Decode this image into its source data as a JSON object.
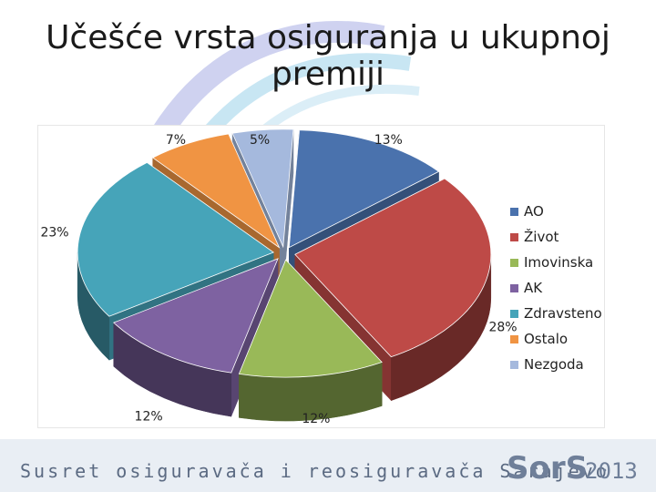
{
  "slide": {
    "title": "Učešće vrsta osiguranja u ukupnoj premiji",
    "footer_text": "Susret osiguravača i reosiguravača Sarajevo",
    "footer_logo": "SorS",
    "footer_year": "2013"
  },
  "chart_data": {
    "type": "pie",
    "style": "3d-exploded",
    "title": "",
    "legend_position": "right",
    "slices": [
      {
        "name": "AO",
        "value": 13,
        "label": "13%",
        "color": "#4a72ad"
      },
      {
        "name": "Život",
        "value": 28,
        "label": "28%",
        "color": "#be4a47"
      },
      {
        "name": "Imovinska",
        "value": 12,
        "label": "12%",
        "color": "#99b958"
      },
      {
        "name": "AK",
        "value": 12,
        "label": "12%",
        "color": "#7e62a1"
      },
      {
        "name": "Zdravsteno",
        "value": 23,
        "label": "23%",
        "color": "#46a4b9"
      },
      {
        "name": "Ostalo",
        "value": 7,
        "label": "7%",
        "color": "#f09443"
      },
      {
        "name": "Nezgoda",
        "value": 5,
        "label": "5%",
        "color": "#a5b9dd"
      }
    ]
  }
}
